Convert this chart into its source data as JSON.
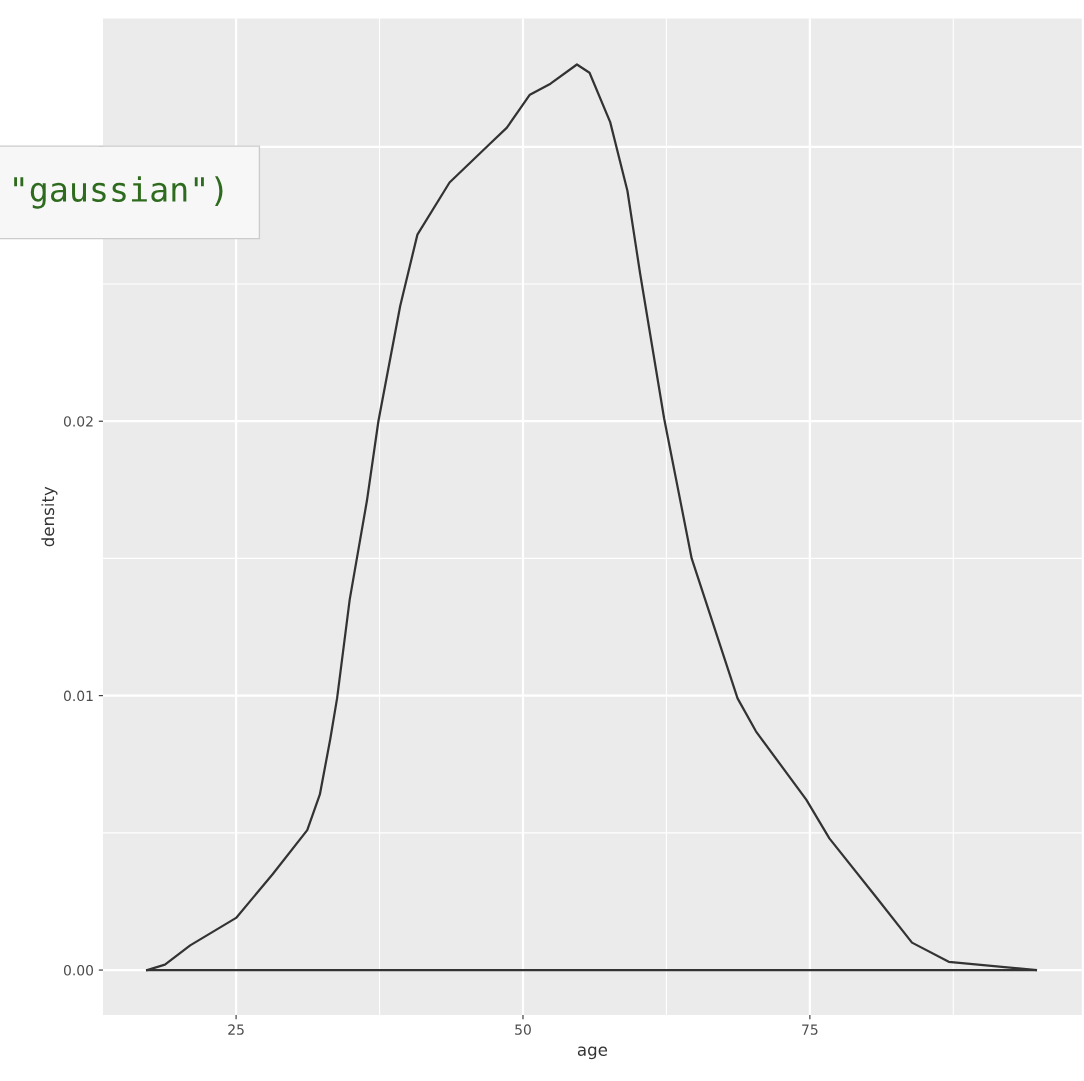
{
  "chart_data": {
    "type": "line",
    "xlabel": "age",
    "ylabel": "density",
    "x": [
      17.25,
      18.8,
      21.0,
      25.0,
      28.2,
      31.2,
      32.3,
      33.2,
      33.8,
      34.9,
      36.4,
      37.4,
      39.3,
      40.8,
      43.6,
      47.1,
      48.6,
      50.6,
      52.4,
      54.7,
      55.8,
      57.6,
      59.1,
      60.2,
      62.3,
      64.7,
      68.7,
      70.3,
      74.7,
      76.7,
      80.7,
      83.9,
      87.1,
      94.7
    ],
    "series": [
      {
        "color": "#333333",
        "values": [
          0,
          0.0002,
          0.0009,
          0.0019,
          0.0035,
          0.0051,
          0.0064,
          0.0084,
          0.0099,
          0.0135,
          0.0171,
          0.02,
          0.0242,
          0.0268,
          0.0287,
          0.0301,
          0.0307,
          0.0319,
          0.0323,
          0.033,
          0.0327,
          0.0309,
          0.0284,
          0.0254,
          0.0201,
          0.015,
          0.0099,
          0.0087,
          0.0062,
          0.0048,
          0.0027,
          0.001,
          0.0003,
          0
        ]
      },
      {
        "color": "#333333",
        "x": [
          17.25,
          94.7
        ],
        "values": [
          0,
          0
        ]
      }
    ],
    "xlim": [
      13.4,
      98.7
    ],
    "ylim": [
      -0.00164,
      0.03468
    ],
    "xticks": [
      25,
      50,
      75
    ],
    "yticks": [
      {
        "value": 0,
        "label": "0.00"
      },
      {
        "value": 0.01,
        "label": "0.01"
      },
      {
        "value": 0.02,
        "label": "0.02"
      },
      {
        "value": 0.03,
        "label": null
      }
    ],
    "grid": true,
    "marker": "none",
    "line_style": "solid",
    "annotations": [
      "\"gaussian\")"
    ]
  }
}
